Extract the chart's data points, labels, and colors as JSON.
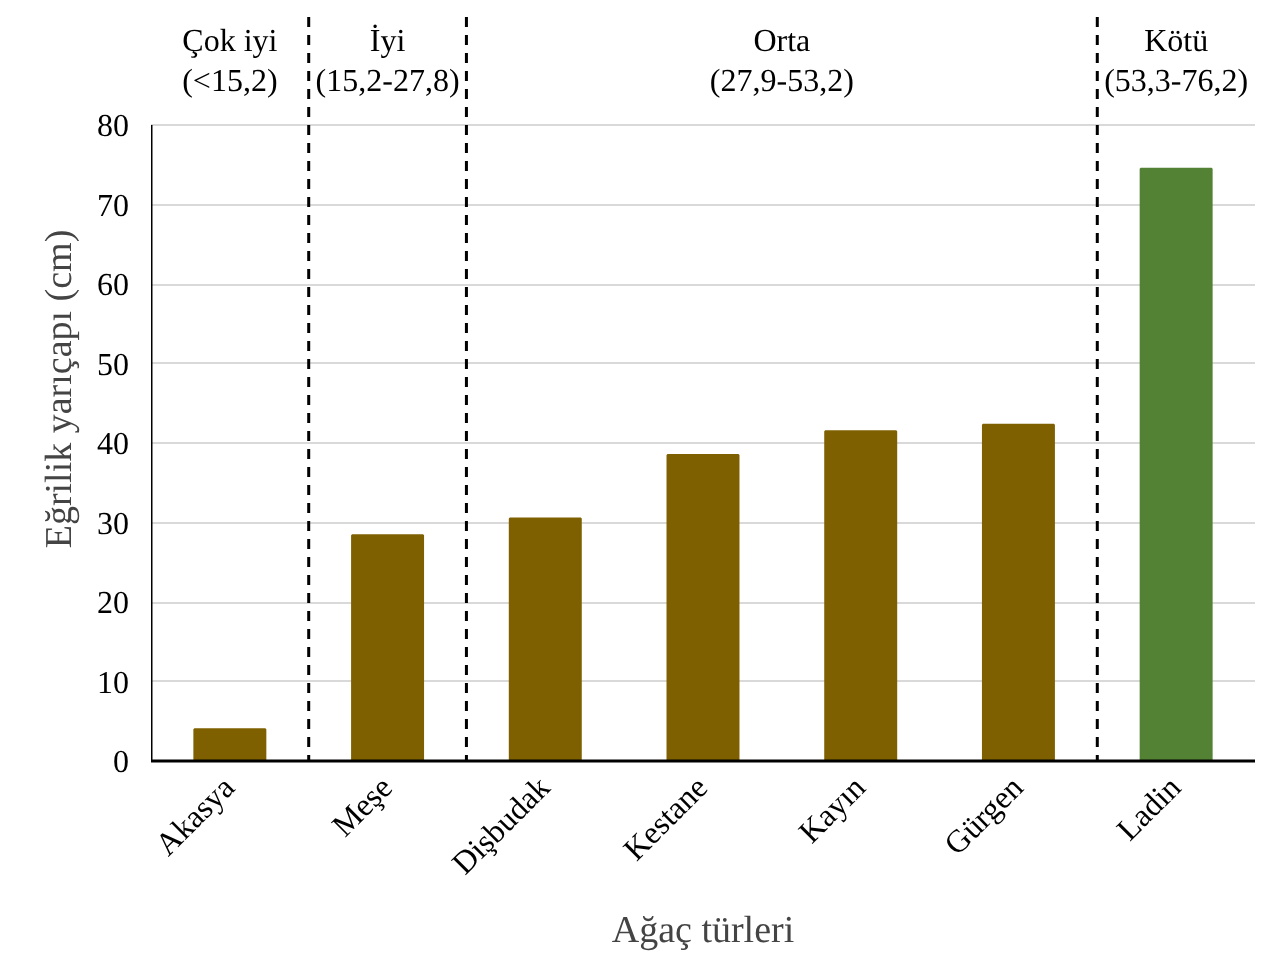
{
  "chart_data": {
    "type": "bar",
    "categories": [
      "Akasya",
      "Meşe",
      "Dişbudak",
      "Kestane",
      "Kayın",
      "Gürgen",
      "Ladin"
    ],
    "values": [
      4.0,
      28.4,
      30.5,
      38.5,
      41.5,
      42.3,
      74.5
    ],
    "colors": [
      "#7f6000",
      "#7f6000",
      "#7f6000",
      "#7f6000",
      "#7f6000",
      "#7f6000",
      "#548235"
    ],
    "xlabel": "Ağaç türleri",
    "ylabel": "Eğrilik yarıçapı (cm)",
    "ylim": [
      0,
      80
    ],
    "yticks": [
      0,
      10,
      20,
      30,
      40,
      50,
      60,
      70,
      80
    ],
    "grid": "y",
    "annotations": [
      "Çok iyi\n(<15,2)",
      "İyi\n(15,2-27,8)",
      "Orta\n(27,9-53,2)",
      "Kötü\n(53,3-76,2)"
    ]
  }
}
